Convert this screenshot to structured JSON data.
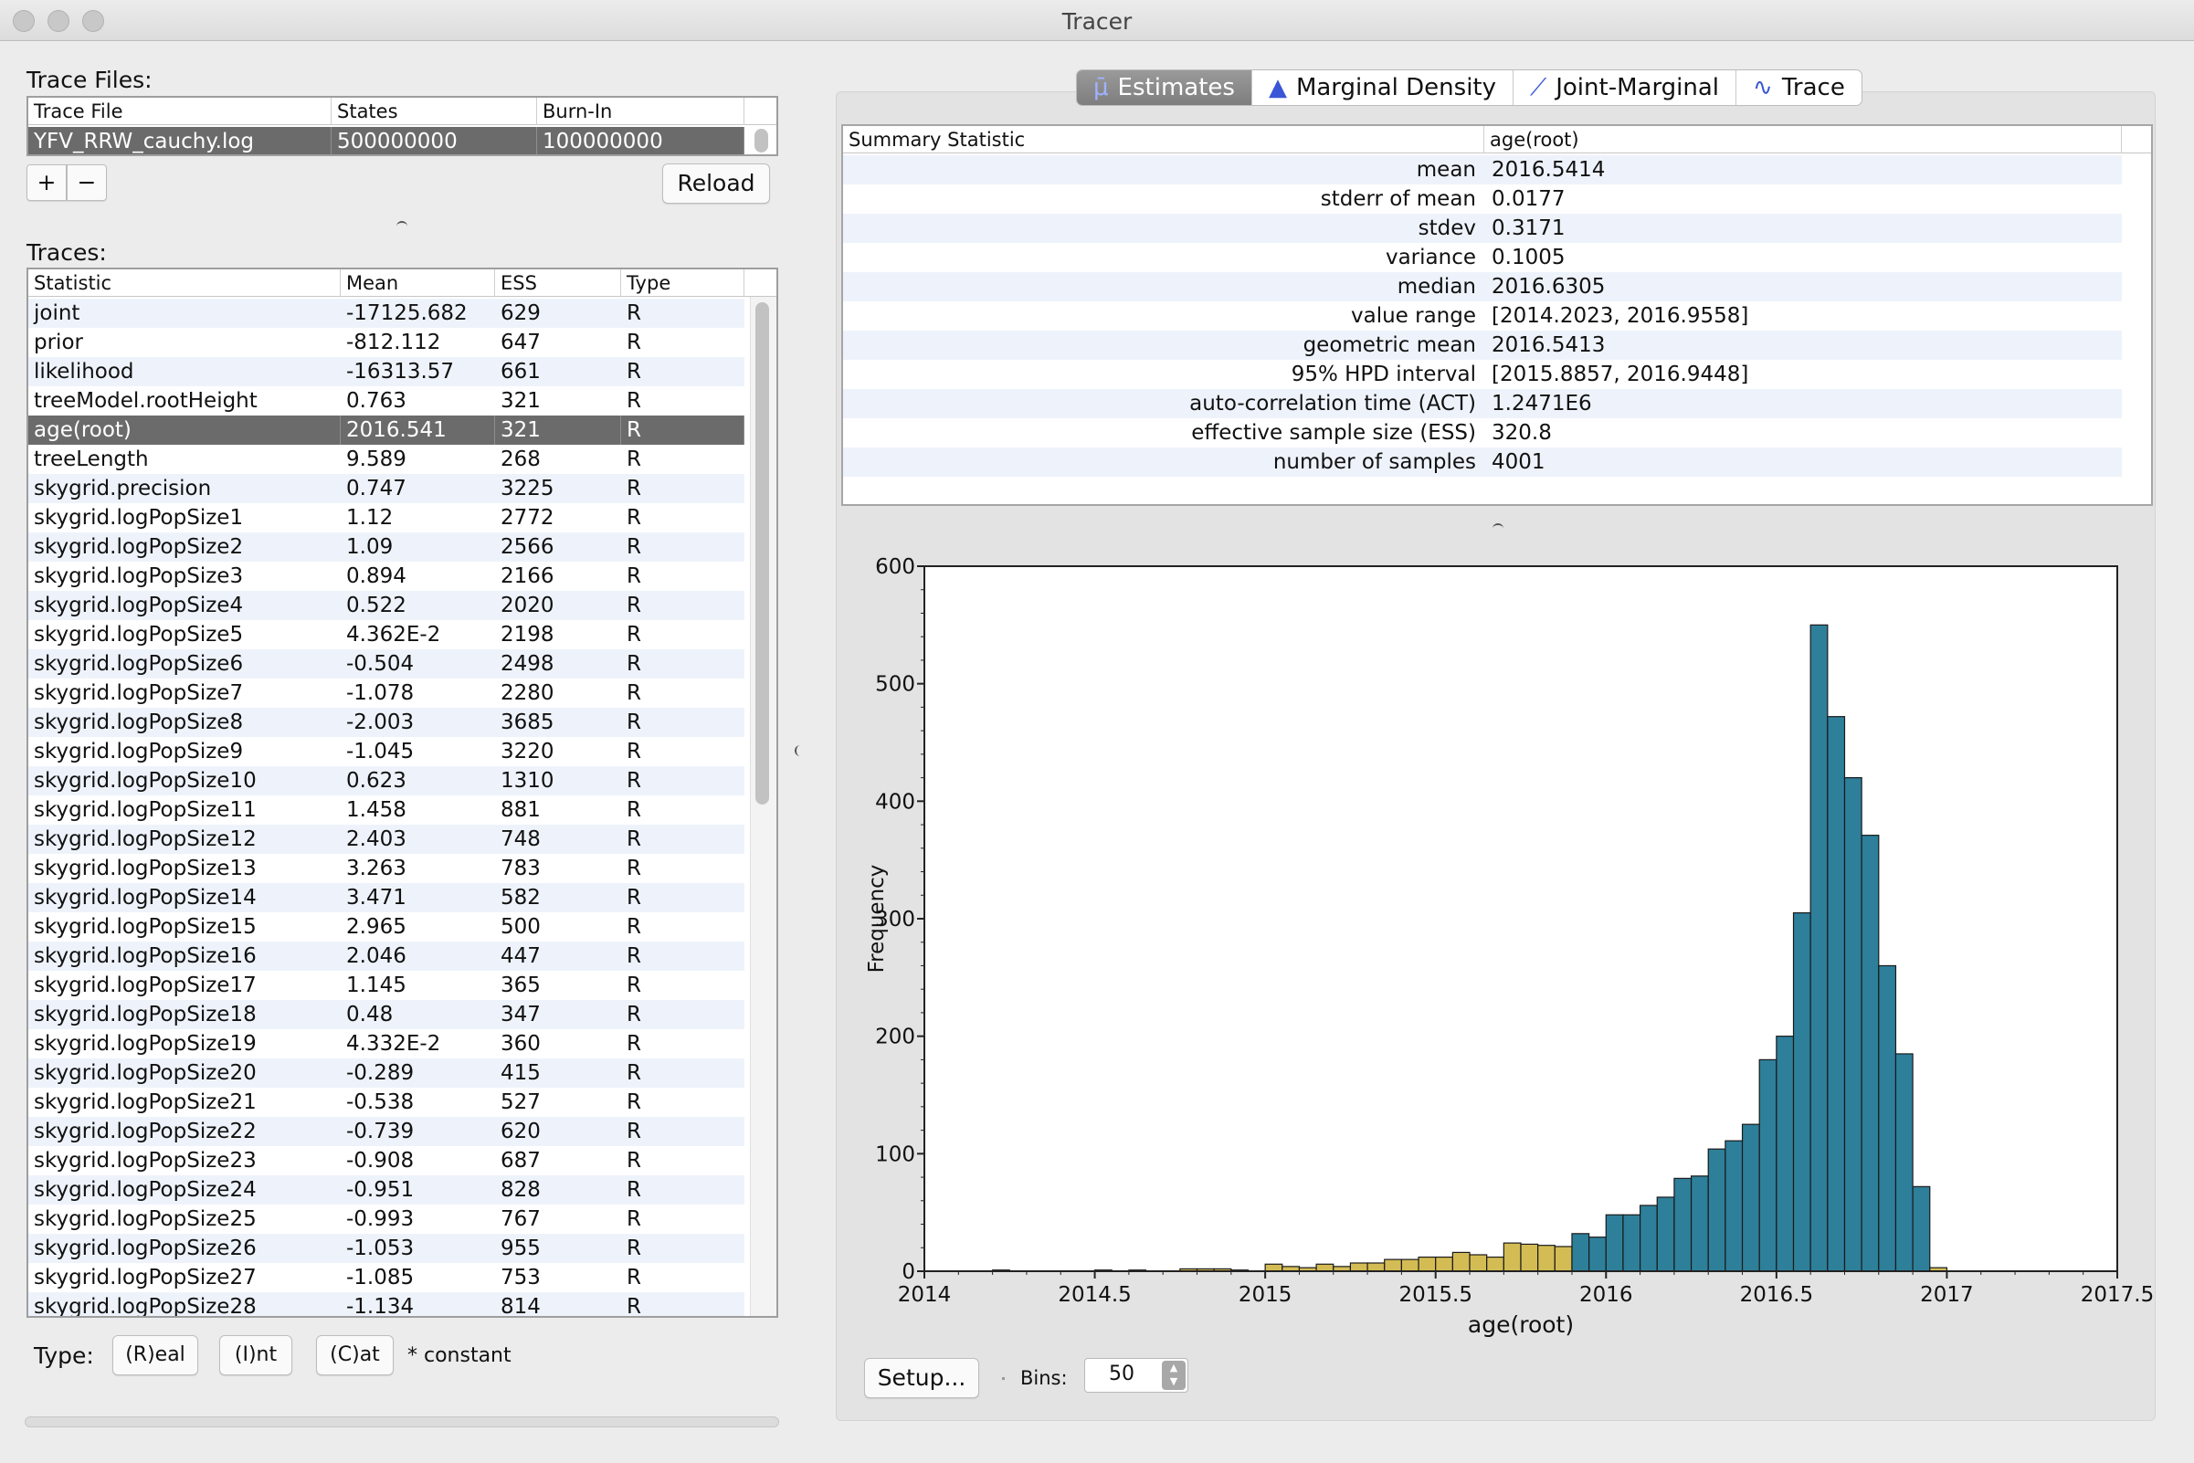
{
  "window": {
    "title": "Tracer"
  },
  "trace_files": {
    "label": "Trace Files:",
    "columns": [
      "Trace File",
      "States",
      "Burn-In"
    ],
    "rows": [
      [
        "YFV_RRW_cauchy.log",
        "500000000",
        "100000000"
      ]
    ],
    "add_label": "+",
    "remove_label": "−",
    "reload_label": "Reload"
  },
  "traces": {
    "label": "Traces:",
    "columns": [
      "Statistic",
      "Mean",
      "ESS",
      "Type"
    ],
    "selected_index": 4,
    "rows": [
      [
        "joint",
        "-17125.682",
        "629",
        "R"
      ],
      [
        "prior",
        "-812.112",
        "647",
        "R"
      ],
      [
        "likelihood",
        "-16313.57",
        "661",
        "R"
      ],
      [
        "treeModel.rootHeight",
        "0.763",
        "321",
        "R"
      ],
      [
        "age(root)",
        "2016.541",
        "321",
        "R"
      ],
      [
        "treeLength",
        "9.589",
        "268",
        "R"
      ],
      [
        "skygrid.precision",
        "0.747",
        "3225",
        "R"
      ],
      [
        "skygrid.logPopSize1",
        "1.12",
        "2772",
        "R"
      ],
      [
        "skygrid.logPopSize2",
        "1.09",
        "2566",
        "R"
      ],
      [
        "skygrid.logPopSize3",
        "0.894",
        "2166",
        "R"
      ],
      [
        "skygrid.logPopSize4",
        "0.522",
        "2020",
        "R"
      ],
      [
        "skygrid.logPopSize5",
        "4.362E-2",
        "2198",
        "R"
      ],
      [
        "skygrid.logPopSize6",
        "-0.504",
        "2498",
        "R"
      ],
      [
        "skygrid.logPopSize7",
        "-1.078",
        "2280",
        "R"
      ],
      [
        "skygrid.logPopSize8",
        "-2.003",
        "3685",
        "R"
      ],
      [
        "skygrid.logPopSize9",
        "-1.045",
        "3220",
        "R"
      ],
      [
        "skygrid.logPopSize10",
        "0.623",
        "1310",
        "R"
      ],
      [
        "skygrid.logPopSize11",
        "1.458",
        "881",
        "R"
      ],
      [
        "skygrid.logPopSize12",
        "2.403",
        "748",
        "R"
      ],
      [
        "skygrid.logPopSize13",
        "3.263",
        "783",
        "R"
      ],
      [
        "skygrid.logPopSize14",
        "3.471",
        "582",
        "R"
      ],
      [
        "skygrid.logPopSize15",
        "2.965",
        "500",
        "R"
      ],
      [
        "skygrid.logPopSize16",
        "2.046",
        "447",
        "R"
      ],
      [
        "skygrid.logPopSize17",
        "1.145",
        "365",
        "R"
      ],
      [
        "skygrid.logPopSize18",
        "0.48",
        "347",
        "R"
      ],
      [
        "skygrid.logPopSize19",
        "4.332E-2",
        "360",
        "R"
      ],
      [
        "skygrid.logPopSize20",
        "-0.289",
        "415",
        "R"
      ],
      [
        "skygrid.logPopSize21",
        "-0.538",
        "527",
        "R"
      ],
      [
        "skygrid.logPopSize22",
        "-0.739",
        "620",
        "R"
      ],
      [
        "skygrid.logPopSize23",
        "-0.908",
        "687",
        "R"
      ],
      [
        "skygrid.logPopSize24",
        "-0.951",
        "828",
        "R"
      ],
      [
        "skygrid.logPopSize25",
        "-0.993",
        "767",
        "R"
      ],
      [
        "skygrid.logPopSize26",
        "-1.053",
        "955",
        "R"
      ],
      [
        "skygrid.logPopSize27",
        "-1.085",
        "753",
        "R"
      ],
      [
        "skygrid.logPopSize28",
        "-1.134",
        "814",
        "R"
      ]
    ]
  },
  "type_legend": {
    "label": "Type:",
    "real": "(R)eal",
    "int": "(I)nt",
    "cat": "(C)at",
    "constant": "* constant"
  },
  "tabs": [
    {
      "label": "Estimates",
      "icon": "mu-icon",
      "glyph": "μ̄",
      "active": true
    },
    {
      "label": "Marginal Density",
      "icon": "density-icon",
      "glyph": "▲",
      "active": false
    },
    {
      "label": "Joint-Marginal",
      "icon": "scatter-icon",
      "glyph": "⟋",
      "active": false
    },
    {
      "label": "Trace",
      "icon": "trace-icon",
      "glyph": "∿",
      "active": false
    }
  ],
  "summary": {
    "columns": [
      "Summary Statistic",
      "age(root)"
    ],
    "rows": [
      [
        "mean",
        "2016.5414"
      ],
      [
        "stderr of mean",
        "0.0177"
      ],
      [
        "stdev",
        "0.3171"
      ],
      [
        "variance",
        "0.1005"
      ],
      [
        "median",
        "2016.6305"
      ],
      [
        "value range",
        "[2014.2023, 2016.9558]"
      ],
      [
        "geometric mean",
        "2016.5413"
      ],
      [
        "95% HPD interval",
        "[2015.8857, 2016.9448]"
      ],
      [
        "auto-correlation time (ACT)",
        "1.2471E6"
      ],
      [
        "effective sample size (ESS)",
        "320.8"
      ],
      [
        "number of samples",
        "4001"
      ]
    ]
  },
  "chart_data": {
    "type": "bar",
    "title": "",
    "xlabel": "age(root)",
    "ylabel": "Frequency",
    "xlim": [
      2014,
      2017.5
    ],
    "ylim": [
      0,
      600
    ],
    "x_ticks": [
      "2014",
      "2014.5",
      "2015",
      "2015.5",
      "2016",
      "2016.5",
      "2017",
      "2017.5"
    ],
    "y_ticks": [
      "0",
      "100",
      "200",
      "300",
      "400",
      "500",
      "600"
    ],
    "bin_width": 0.05,
    "hpd_interval": [
      2015.8857,
      2016.9448
    ],
    "colors": {
      "in_hpd": "#2e7f9a",
      "out_hpd": "#d4bc55"
    },
    "bins": [
      {
        "x": 2014.2,
        "y": 1
      },
      {
        "x": 2014.5,
        "y": 1
      },
      {
        "x": 2014.6,
        "y": 1
      },
      {
        "x": 2014.75,
        "y": 2
      },
      {
        "x": 2014.8,
        "y": 2
      },
      {
        "x": 2014.85,
        "y": 2
      },
      {
        "x": 2014.9,
        "y": 1
      },
      {
        "x": 2015.0,
        "y": 6
      },
      {
        "x": 2015.05,
        "y": 4
      },
      {
        "x": 2015.1,
        "y": 3
      },
      {
        "x": 2015.15,
        "y": 6
      },
      {
        "x": 2015.2,
        "y": 4
      },
      {
        "x": 2015.25,
        "y": 7
      },
      {
        "x": 2015.3,
        "y": 7
      },
      {
        "x": 2015.35,
        "y": 10
      },
      {
        "x": 2015.4,
        "y": 10
      },
      {
        "x": 2015.45,
        "y": 12
      },
      {
        "x": 2015.5,
        "y": 12
      },
      {
        "x": 2015.55,
        "y": 16
      },
      {
        "x": 2015.6,
        "y": 14
      },
      {
        "x": 2015.65,
        "y": 12
      },
      {
        "x": 2015.7,
        "y": 24
      },
      {
        "x": 2015.75,
        "y": 23
      },
      {
        "x": 2015.8,
        "y": 22
      },
      {
        "x": 2015.85,
        "y": 21
      },
      {
        "x": 2015.9,
        "y": 32
      },
      {
        "x": 2015.95,
        "y": 29
      },
      {
        "x": 2016.0,
        "y": 48
      },
      {
        "x": 2016.05,
        "y": 48
      },
      {
        "x": 2016.1,
        "y": 56
      },
      {
        "x": 2016.15,
        "y": 63
      },
      {
        "x": 2016.2,
        "y": 79
      },
      {
        "x": 2016.25,
        "y": 81
      },
      {
        "x": 2016.3,
        "y": 104
      },
      {
        "x": 2016.35,
        "y": 111
      },
      {
        "x": 2016.4,
        "y": 125
      },
      {
        "x": 2016.45,
        "y": 180
      },
      {
        "x": 2016.5,
        "y": 200
      },
      {
        "x": 2016.55,
        "y": 305
      },
      {
        "x": 2016.6,
        "y": 550
      },
      {
        "x": 2016.65,
        "y": 472
      },
      {
        "x": 2016.7,
        "y": 420
      },
      {
        "x": 2016.75,
        "y": 371
      },
      {
        "x": 2016.8,
        "y": 260
      },
      {
        "x": 2016.85,
        "y": 185
      },
      {
        "x": 2016.9,
        "y": 72
      },
      {
        "x": 2016.95,
        "y": 3
      }
    ]
  },
  "chart_controls": {
    "setup_label": "Setup...",
    "bins_label": "Bins:",
    "bins_value": "50"
  }
}
